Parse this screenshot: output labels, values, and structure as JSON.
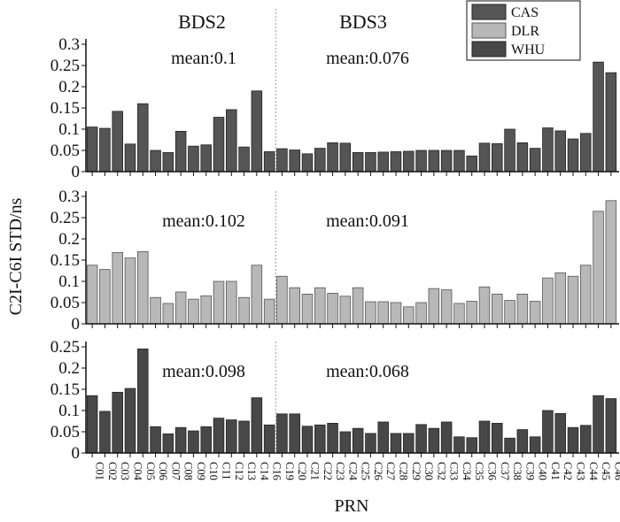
{
  "chart_data": {
    "type": "bar",
    "ylabel": "C2I-C6I STD/ns",
    "xlabel": "PRN",
    "categories": [
      "C01",
      "C02",
      "C03",
      "C04",
      "C05",
      "C06",
      "C07",
      "C08",
      "C09",
      "C10",
      "C11",
      "C12",
      "C13",
      "C14",
      "C16",
      "C19",
      "C20",
      "C21",
      "C22",
      "C23",
      "C24",
      "C25",
      "C26",
      "C27",
      "C28",
      "C29",
      "C30",
      "C32",
      "C33",
      "C34",
      "C35",
      "C36",
      "C37",
      "C38",
      "C39",
      "C40",
      "C41",
      "C42",
      "C43",
      "C44",
      "C45",
      "C46"
    ],
    "group_labels": {
      "bds2": "BDS2",
      "bds3": "BDS3"
    },
    "legend": {
      "placement": "top-right",
      "entries": [
        "CAS",
        "DLR",
        "WHU"
      ]
    },
    "panels": [
      {
        "name": "CAS",
        "color": "#555555",
        "ylim": [
          0,
          0.3
        ],
        "yticks": [
          "0",
          "0.05",
          "0.1",
          "0.15",
          "0.2",
          "0.25",
          "0.3"
        ],
        "mean_bds2": "mean:0.1",
        "mean_bds3": "mean:0.076",
        "values": [
          0.105,
          0.102,
          0.142,
          0.065,
          0.16,
          0.05,
          0.045,
          0.095,
          0.06,
          0.063,
          0.128,
          0.146,
          0.058,
          0.19,
          0.047,
          0.054,
          0.051,
          0.042,
          0.055,
          0.068,
          0.067,
          0.045,
          0.045,
          0.046,
          0.047,
          0.048,
          0.05,
          0.05,
          0.05,
          0.05,
          0.037,
          0.067,
          0.066,
          0.1,
          0.068,
          0.055,
          0.103,
          0.096,
          0.077,
          0.09,
          0.258,
          0.233
        ]
      },
      {
        "name": "DLR",
        "color": "#b8b8b8",
        "ylim": [
          0,
          0.3
        ],
        "yticks": [
          "0",
          "0.05",
          "0.1",
          "0.15",
          "0.2",
          "0.25",
          "0.3"
        ],
        "mean_bds2": "mean:0.102",
        "mean_bds3": "mean:0.091",
        "values": [
          0.138,
          0.128,
          0.168,
          0.155,
          0.17,
          0.062,
          0.048,
          0.075,
          0.058,
          0.066,
          0.1,
          0.1,
          0.062,
          0.138,
          0.058,
          0.112,
          0.085,
          0.07,
          0.085,
          0.072,
          0.065,
          0.085,
          0.052,
          0.052,
          0.05,
          0.04,
          0.05,
          0.083,
          0.08,
          0.048,
          0.053,
          0.087,
          0.07,
          0.055,
          0.07,
          0.053,
          0.108,
          0.12,
          0.112,
          0.138,
          0.265,
          0.29
        ]
      },
      {
        "name": "WHU",
        "color": "#484848",
        "ylim": [
          0,
          0.25
        ],
        "yticks": [
          "0",
          "0.05",
          "0.1",
          "0.15",
          "0.2",
          "0.25"
        ],
        "mean_bds2": "mean:0.098",
        "mean_bds3": "mean:0.068",
        "values": [
          0.135,
          0.098,
          0.143,
          0.152,
          0.245,
          0.062,
          0.045,
          0.06,
          0.052,
          0.062,
          0.082,
          0.078,
          0.075,
          0.13,
          0.066,
          0.092,
          0.092,
          0.063,
          0.066,
          0.07,
          0.05,
          0.058,
          0.046,
          0.073,
          0.046,
          0.046,
          0.067,
          0.058,
          0.073,
          0.038,
          0.036,
          0.075,
          0.07,
          0.035,
          0.055,
          0.038,
          0.1,
          0.093,
          0.06,
          0.065,
          0.135,
          0.128
        ]
      }
    ]
  }
}
